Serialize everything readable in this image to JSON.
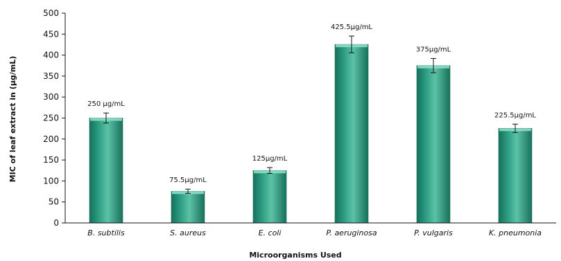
{
  "chart_data": {
    "type": "bar",
    "title": "",
    "xlabel": "Microorganisms Used",
    "ylabel": "MIC of leaf extract  in (µg/mL)",
    "ylim": [
      0,
      500
    ],
    "yticks": [
      0,
      50,
      100,
      150,
      200,
      250,
      300,
      350,
      400,
      450,
      500
    ],
    "grid": false,
    "legend": "none",
    "categories": [
      "B. subtilis",
      "S. aureus",
      "E. coli",
      "P. aeruginosa",
      "P. vulgaris",
      "K. pneumonia"
    ],
    "values": [
      250,
      75.5,
      125,
      425.5,
      375,
      225.5
    ],
    "errors": [
      12,
      5,
      7,
      20,
      17,
      10
    ],
    "data_labels": [
      "250 µg/mL",
      "75.5µg/mL",
      "125µg/mL",
      "425.5µg/mL",
      "375µg/mL",
      "225.5µg/mL"
    ],
    "colors": {
      "bar": "#2a9a80",
      "bar_dark": "#17705b",
      "bar_light": "#5cc2a6",
      "cap": "#8fdcc6",
      "axis": "#111111"
    }
  }
}
